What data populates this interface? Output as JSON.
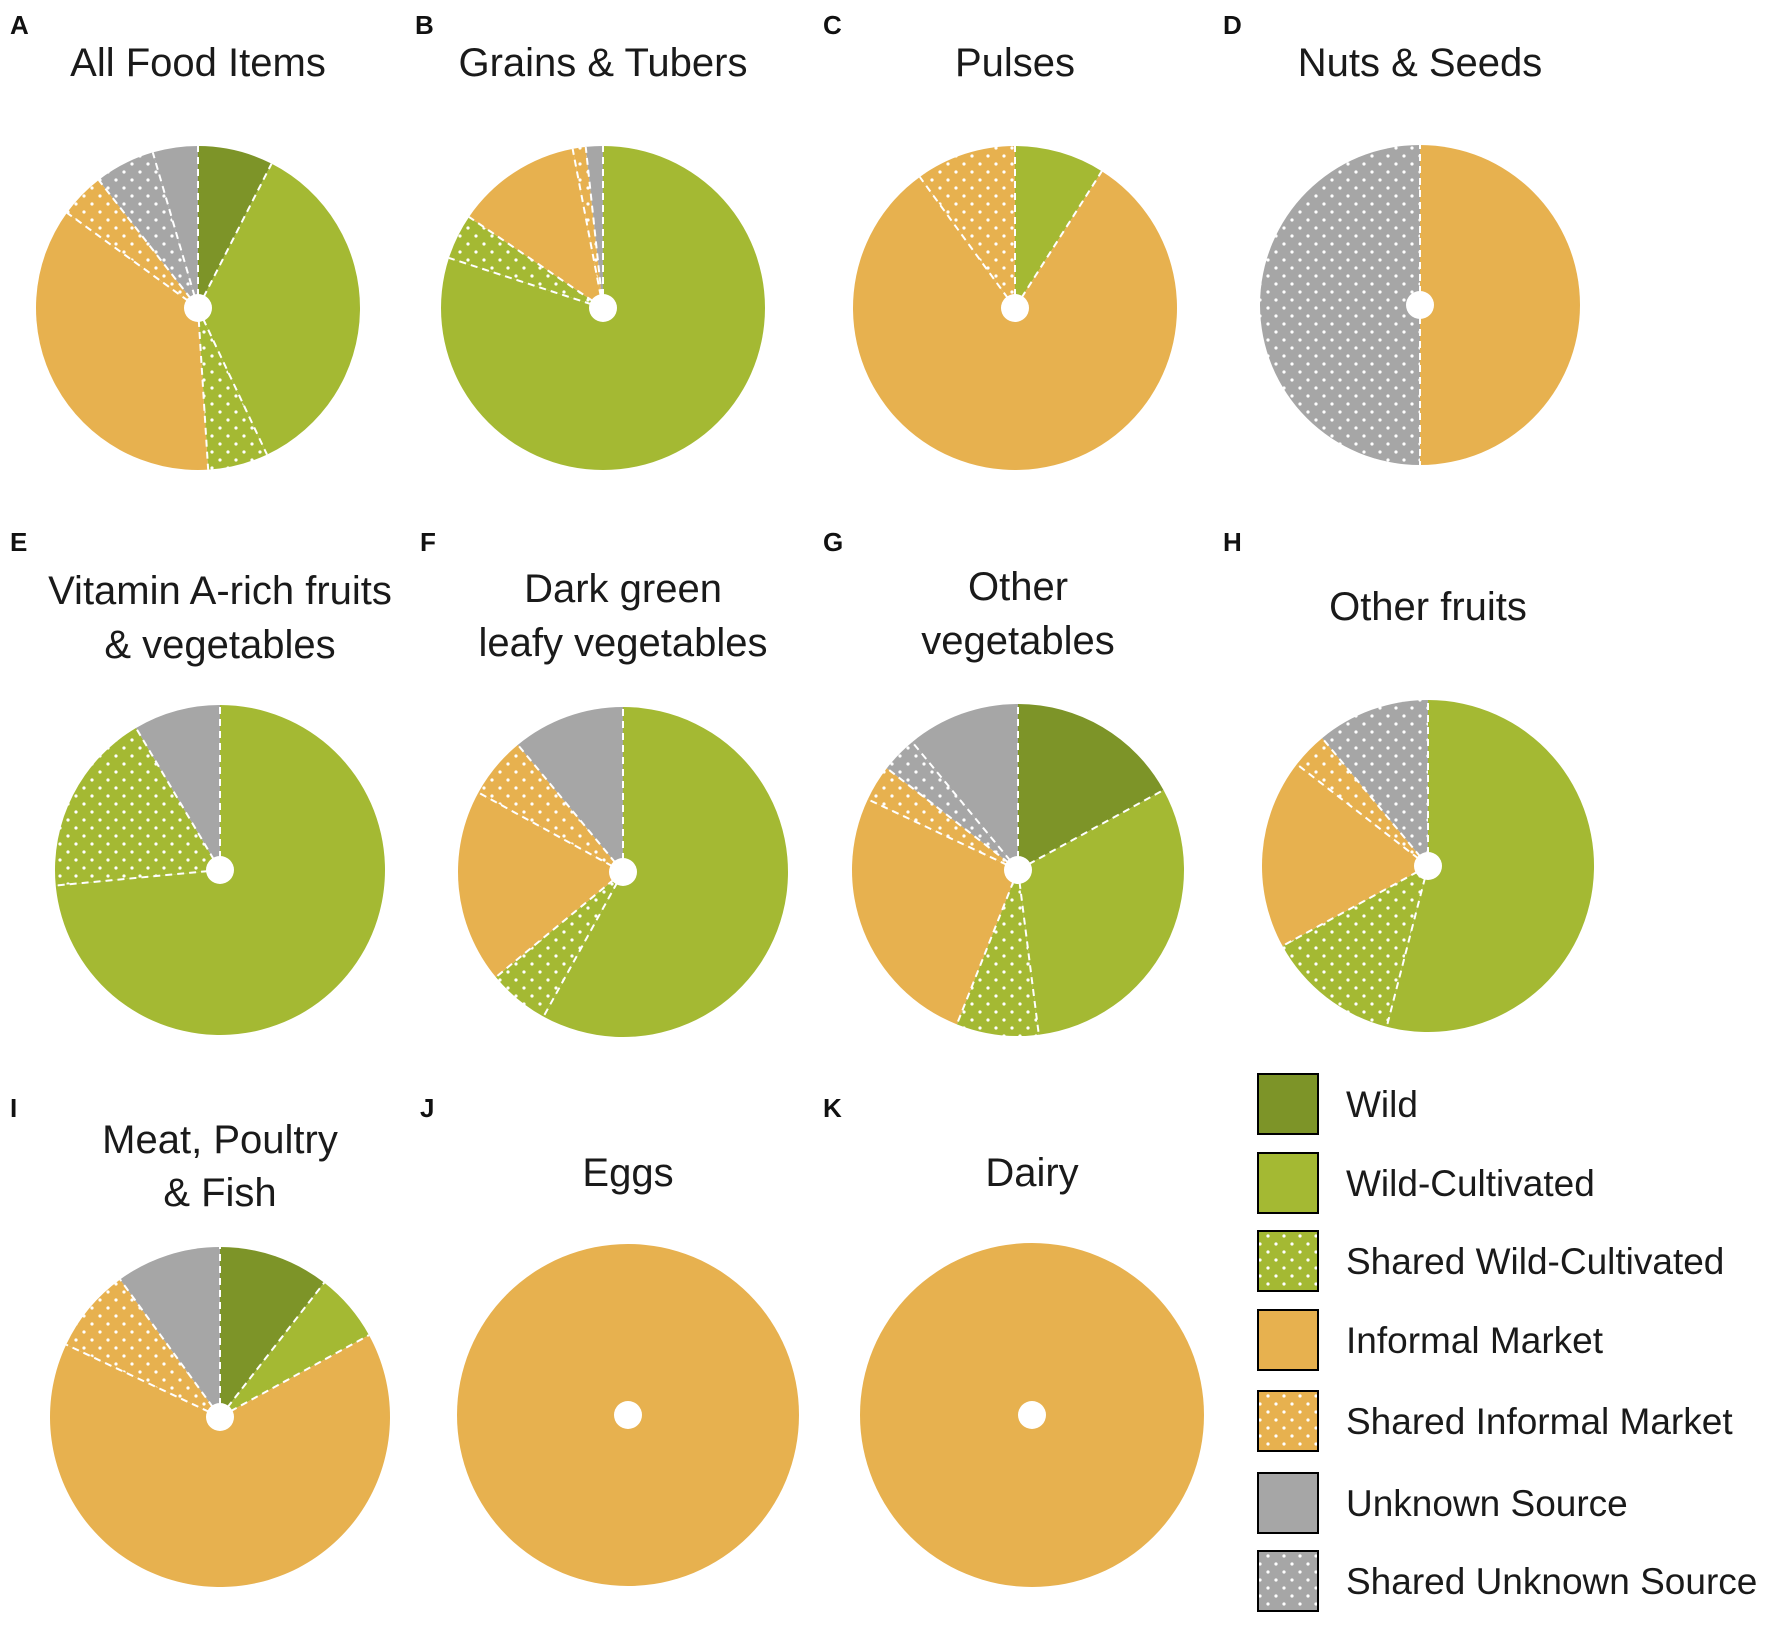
{
  "chart_data": {
    "type": "pie",
    "categories": [
      "Wild",
      "Wild-Cultivated",
      "Shared Wild-Cultivated",
      "Informal Market",
      "Shared Informal Market",
      "Unknown Source",
      "Shared Unknown Source"
    ],
    "colors": {
      "Wild": "#7d9428",
      "Wild-Cultivated": "#a4b933",
      "Shared Wild-Cultivated": "#a4b933",
      "Informal Market": "#e7b14f",
      "Shared Informal Market": "#e7b14f",
      "Unknown Source": "#a6a6a6",
      "Shared Unknown Source": "#a6a6a6"
    },
    "patterned": [
      "Shared Wild-Cultivated",
      "Shared Informal Market",
      "Shared Unknown Source"
    ],
    "legend": [
      {
        "label": "Wild",
        "category": "Wild"
      },
      {
        "label": "Wild-Cultivated",
        "category": "Wild-Cultivated"
      },
      {
        "label": "Shared Wild-Cultivated",
        "category": "Shared Wild-Cultivated"
      },
      {
        "label": "Informal Market",
        "category": "Informal Market"
      },
      {
        "label": "Shared Informal Market",
        "category": "Shared Informal Market"
      },
      {
        "label": "Unknown Source",
        "category": "Unknown Source"
      },
      {
        "label": "Shared Unknown Source",
        "category": "Shared Unknown Source"
      }
    ],
    "panels": [
      {
        "letter": "A",
        "title": [
          "All Food Items"
        ],
        "slices": [
          {
            "category": "Wild",
            "value": 7.5
          },
          {
            "category": "Wild-Cultivated",
            "value": 35.5
          },
          {
            "category": "Shared Wild-Cultivated",
            "value": 6
          },
          {
            "category": "Informal Market",
            "value": 36
          },
          {
            "category": "Shared Informal Market",
            "value": 4.5
          },
          {
            "category": "Shared Unknown Source",
            "value": 6
          },
          {
            "category": "Unknown Source",
            "value": 4.5
          }
        ]
      },
      {
        "letter": "B",
        "title": [
          "Grains & Tubers"
        ],
        "slices": [
          {
            "category": "Wild-Cultivated",
            "value": 80
          },
          {
            "category": "Shared Wild-Cultivated",
            "value": 4.5
          },
          {
            "category": "Informal Market",
            "value": 12.5
          },
          {
            "category": "Shared Informal Market",
            "value": 1.3
          },
          {
            "category": "Unknown Source",
            "value": 1.7
          }
        ]
      },
      {
        "letter": "C",
        "title": [
          "Pulses"
        ],
        "slices": [
          {
            "category": "Wild-Cultivated",
            "value": 9
          },
          {
            "category": "Informal Market",
            "value": 81
          },
          {
            "category": "Shared Informal Market",
            "value": 10
          }
        ]
      },
      {
        "letter": "D",
        "title": [
          "Nuts & Seeds"
        ],
        "slices": [
          {
            "category": "Informal Market",
            "value": 50
          },
          {
            "category": "Shared Unknown Source",
            "value": 50
          }
        ]
      },
      {
        "letter": "E",
        "title": [
          "Vitamin A-rich fruits",
          "& vegetables"
        ],
        "slices": [
          {
            "category": "Wild-Cultivated",
            "value": 73.5
          },
          {
            "category": "Shared Wild-Cultivated",
            "value": 18
          },
          {
            "category": "Unknown Source",
            "value": 8.5
          }
        ]
      },
      {
        "letter": "F",
        "title": [
          "Dark green",
          "leafy vegetables"
        ],
        "slices": [
          {
            "category": "Wild-Cultivated",
            "value": 58
          },
          {
            "category": "Shared Wild-Cultivated",
            "value": 6
          },
          {
            "category": "Informal Market",
            "value": 19
          },
          {
            "category": "Shared Informal Market",
            "value": 6
          },
          {
            "category": "Unknown Source",
            "value": 11
          }
        ]
      },
      {
        "letter": "G",
        "title": [
          "Other",
          "vegetables"
        ],
        "slices": [
          {
            "category": "Wild",
            "value": 17
          },
          {
            "category": "Wild-Cultivated",
            "value": 31
          },
          {
            "category": "Shared Wild-Cultivated",
            "value": 8
          },
          {
            "category": "Informal Market",
            "value": 26
          },
          {
            "category": "Shared Informal Market",
            "value": 3.5
          },
          {
            "category": "Shared Unknown Source",
            "value": 3.5
          },
          {
            "category": "Unknown Source",
            "value": 11
          }
        ]
      },
      {
        "letter": "H",
        "title": [
          "Other fruits"
        ],
        "slices": [
          {
            "category": "Wild-Cultivated",
            "value": 54
          },
          {
            "category": "Shared Wild-Cultivated",
            "value": 13
          },
          {
            "category": "Informal Market",
            "value": 18.5
          },
          {
            "category": "Shared Informal Market",
            "value": 3.5
          },
          {
            "category": "Shared Unknown Source",
            "value": 11
          }
        ]
      },
      {
        "letter": "I",
        "title": [
          "Meat, Poultry",
          "& Fish"
        ],
        "slices": [
          {
            "category": "Wild",
            "value": 10.5
          },
          {
            "category": "Wild-Cultivated",
            "value": 6.5
          },
          {
            "category": "Informal Market",
            "value": 65
          },
          {
            "category": "Shared Informal Market",
            "value": 8
          },
          {
            "category": "Unknown Source",
            "value": 10
          }
        ]
      },
      {
        "letter": "J",
        "title": [
          "Eggs"
        ],
        "slices": [
          {
            "category": "Informal Market",
            "value": 100
          }
        ]
      },
      {
        "letter": "K",
        "title": [
          "Dairy"
        ],
        "slices": [
          {
            "category": "Informal Market",
            "value": 100
          }
        ]
      }
    ]
  }
}
